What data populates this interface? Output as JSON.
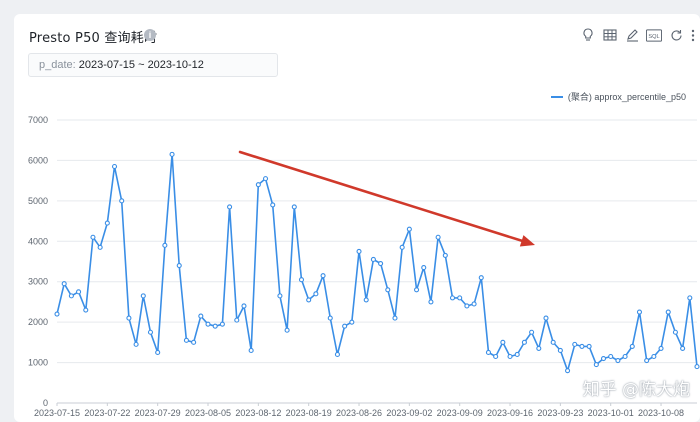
{
  "panel": {
    "title": "Presto P50 查询耗时",
    "info_icon": "info-icon",
    "toolbar_icons": [
      "lightbulb-icon",
      "table-icon",
      "edit-icon",
      "sql-icon",
      "refresh-icon",
      "more-icon"
    ],
    "sql_label": "SQL"
  },
  "filter": {
    "key": "p_date:",
    "value": "2023-07-15 ~ 2023-10-12"
  },
  "watermark": "知乎 @陈大炮",
  "colors": {
    "series": "#3a8ee6",
    "arrow": "#d0392b",
    "grid": "#e6e9ed"
  },
  "chart_data": {
    "type": "line",
    "title": "",
    "xlabel": "",
    "ylabel": "",
    "ylim": [
      0,
      7000
    ],
    "yticks": [
      0,
      1000,
      2000,
      3000,
      4000,
      5000,
      6000,
      7000
    ],
    "xticks": [
      "2023-07-15",
      "2023-07-22",
      "2023-07-29",
      "2023-08-05",
      "2023-08-12",
      "2023-08-19",
      "2023-08-26",
      "2023-09-02",
      "2023-09-09",
      "2023-09-16",
      "2023-09-23",
      "2023-10-01",
      "2023-10-08"
    ],
    "grid": true,
    "legend_position": "top-right",
    "annotation": "red downward trend arrow",
    "series": [
      {
        "name": "(聚合) approx_percentile_p50",
        "values": [
          2200,
          2950,
          2650,
          2750,
          2300,
          4100,
          3850,
          4450,
          5850,
          5000,
          2100,
          1450,
          2650,
          1750,
          1250,
          3900,
          6150,
          3400,
          1550,
          1500,
          2150,
          1950,
          1900,
          1950,
          4850,
          2050,
          2400,
          1300,
          5400,
          5550,
          4900,
          2650,
          1800,
          4850,
          3050,
          2550,
          2700,
          3150,
          2100,
          1200,
          1900,
          2000,
          3750,
          2550,
          3550,
          3450,
          2800,
          2100,
          3850,
          4300,
          2800,
          3350,
          2500,
          4100,
          3650,
          2600,
          2600,
          2400,
          2450,
          3100,
          1250,
          1150,
          1500,
          1150,
          1200,
          1500,
          1750,
          1350,
          2100,
          1500,
          1300,
          800,
          1450,
          1400,
          1400,
          950,
          1100,
          1150,
          1050,
          1150,
          1400,
          2250,
          1050,
          1150,
          1350,
          2250,
          1750,
          1350,
          2600,
          900
        ]
      }
    ]
  }
}
